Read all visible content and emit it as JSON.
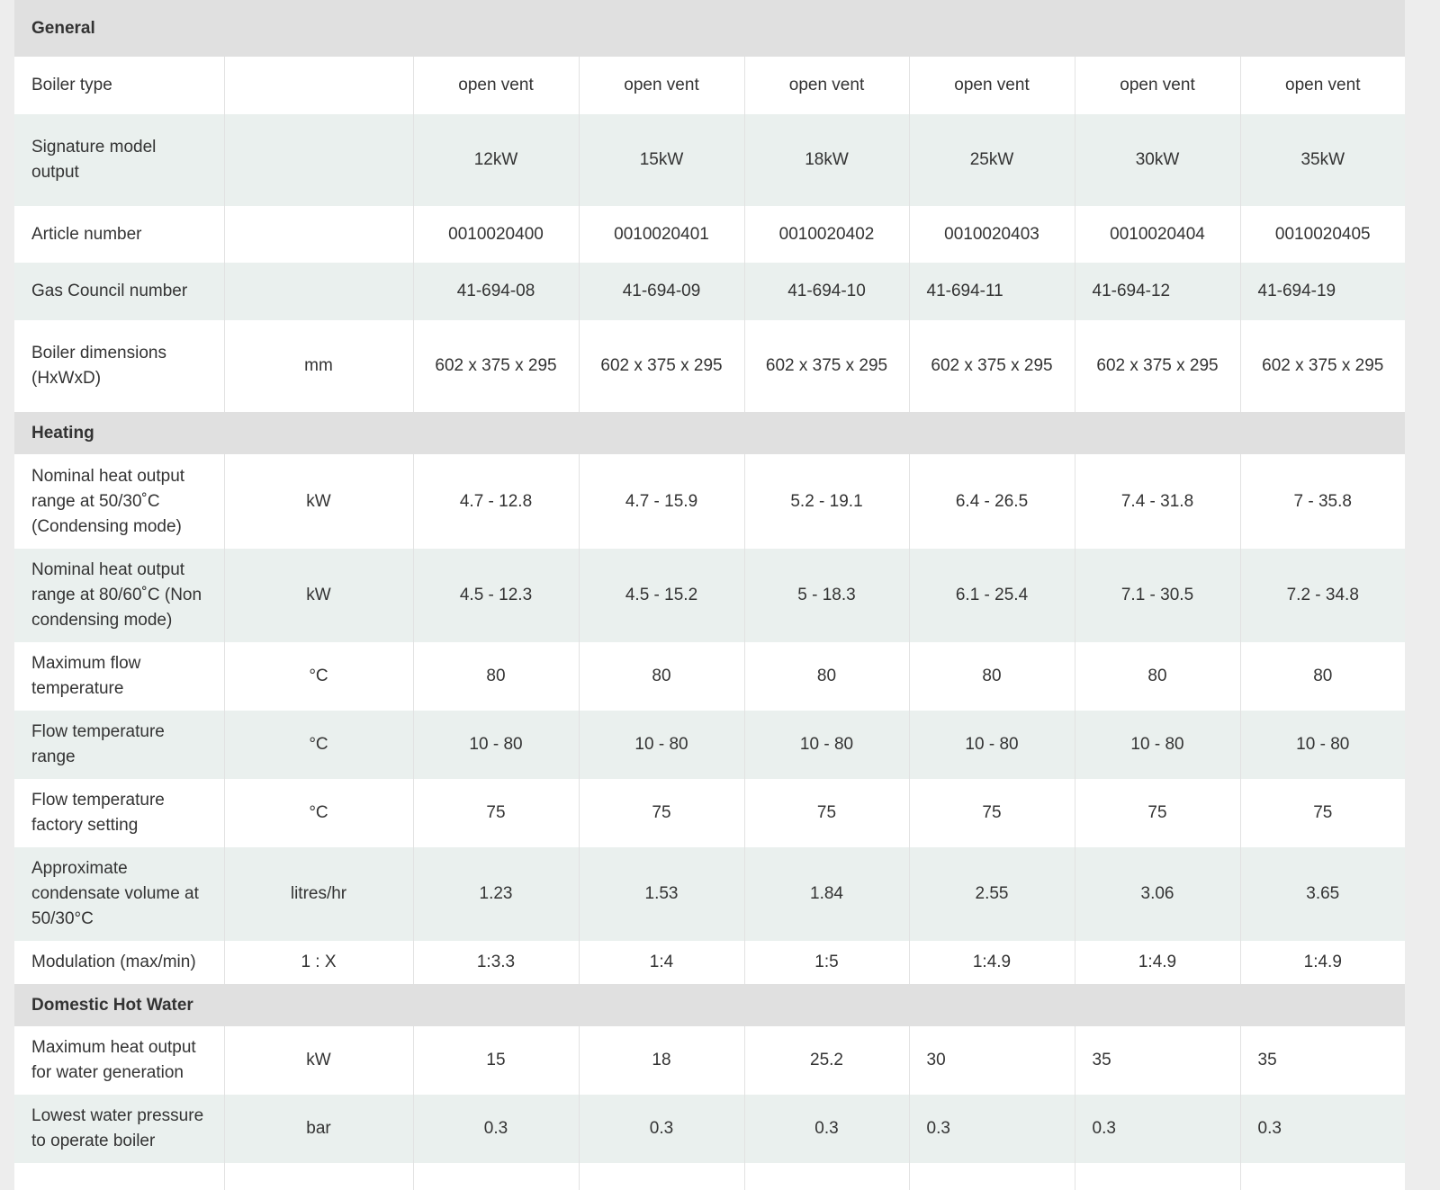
{
  "sections": [
    {
      "title": "General",
      "rows": [
        {
          "label": "Boiler type",
          "unit": "",
          "values": [
            "open vent",
            "open vent",
            "open vent",
            "open vent",
            "open vent",
            "open vent"
          ]
        },
        {
          "label": "Signature model output",
          "unit": "",
          "values": [
            "12kW",
            "15kW",
            "18kW",
            "25kW",
            "30kW",
            "35kW"
          ]
        },
        {
          "label": "Article number",
          "unit": "",
          "values": [
            "0010020400",
            "0010020401",
            "0010020402",
            "0010020403",
            "0010020404",
            "0010020405"
          ]
        },
        {
          "label": "Gas Council number",
          "unit": "",
          "values": [
            "41-694-08",
            "41-694-09",
            "41-694-10",
            "41-694-11",
            "41-694-12",
            "41-694-19"
          ]
        },
        {
          "label": "Boiler dimensions (HxWxD)",
          "unit": "mm",
          "values": [
            "602 x 375 x 295",
            "602 x 375 x 295",
            "602 x 375 x 295",
            "602 x 375 x 295",
            "602 x 375 x 295",
            "602 x 375 x 295"
          ]
        }
      ]
    },
    {
      "title": "Heating",
      "rows": [
        {
          "label": "Nominal heat output range at 50/30˚C (Condensing mode)",
          "unit": "kW",
          "values": [
            "4.7 - 12.8",
            "4.7 - 15.9",
            "5.2 - 19.1",
            "6.4 - 26.5",
            "7.4 - 31.8",
            "7 - 35.8"
          ]
        },
        {
          "label": "Nominal heat output range at 80/60˚C (Non condensing mode)",
          "unit": "kW",
          "values": [
            "4.5 - 12.3",
            "4.5 - 15.2",
            "5 - 18.3",
            "6.1 - 25.4",
            "7.1 - 30.5",
            "7.2 - 34.8"
          ]
        },
        {
          "label": "Maximum flow temperature",
          "unit": "°C",
          "values": [
            "80",
            "80",
            "80",
            "80",
            "80",
            "80"
          ]
        },
        {
          "label": "Flow temperature range",
          "unit": "°C",
          "values": [
            "10 - 80",
            "10 - 80",
            "10 - 80",
            "10 - 80",
            "10 - 80",
            "10 - 80"
          ]
        },
        {
          "label": "Flow temperature factory setting",
          "unit": "°C",
          "values": [
            "75",
            "75",
            "75",
            "75",
            "75",
            "75"
          ]
        },
        {
          "label": "Approximate condensate volume at 50/30°C",
          "unit": "litres/hr",
          "values": [
            "1.23",
            "1.53",
            "1.84",
            "2.55",
            "3.06",
            "3.65"
          ]
        },
        {
          "label": "Modulation (max/min)",
          "unit": "1 : X",
          "values": [
            "1:3.3",
            "1:4",
            "1:5",
            "1:4.9",
            "1:4.9",
            "1:4.9"
          ]
        }
      ]
    },
    {
      "title": "Domestic Hot Water",
      "rows": [
        {
          "label": "Maximum heat output for water generation",
          "unit": "kW",
          "values": [
            "15",
            "18",
            "25.2",
            "30",
            "35",
            "35"
          ]
        },
        {
          "label": "Lowest water pressure to operate boiler",
          "unit": "bar",
          "values": [
            "0.3",
            "0.3",
            "0.3",
            "0.3",
            "0.3",
            "0.3"
          ]
        }
      ]
    }
  ]
}
